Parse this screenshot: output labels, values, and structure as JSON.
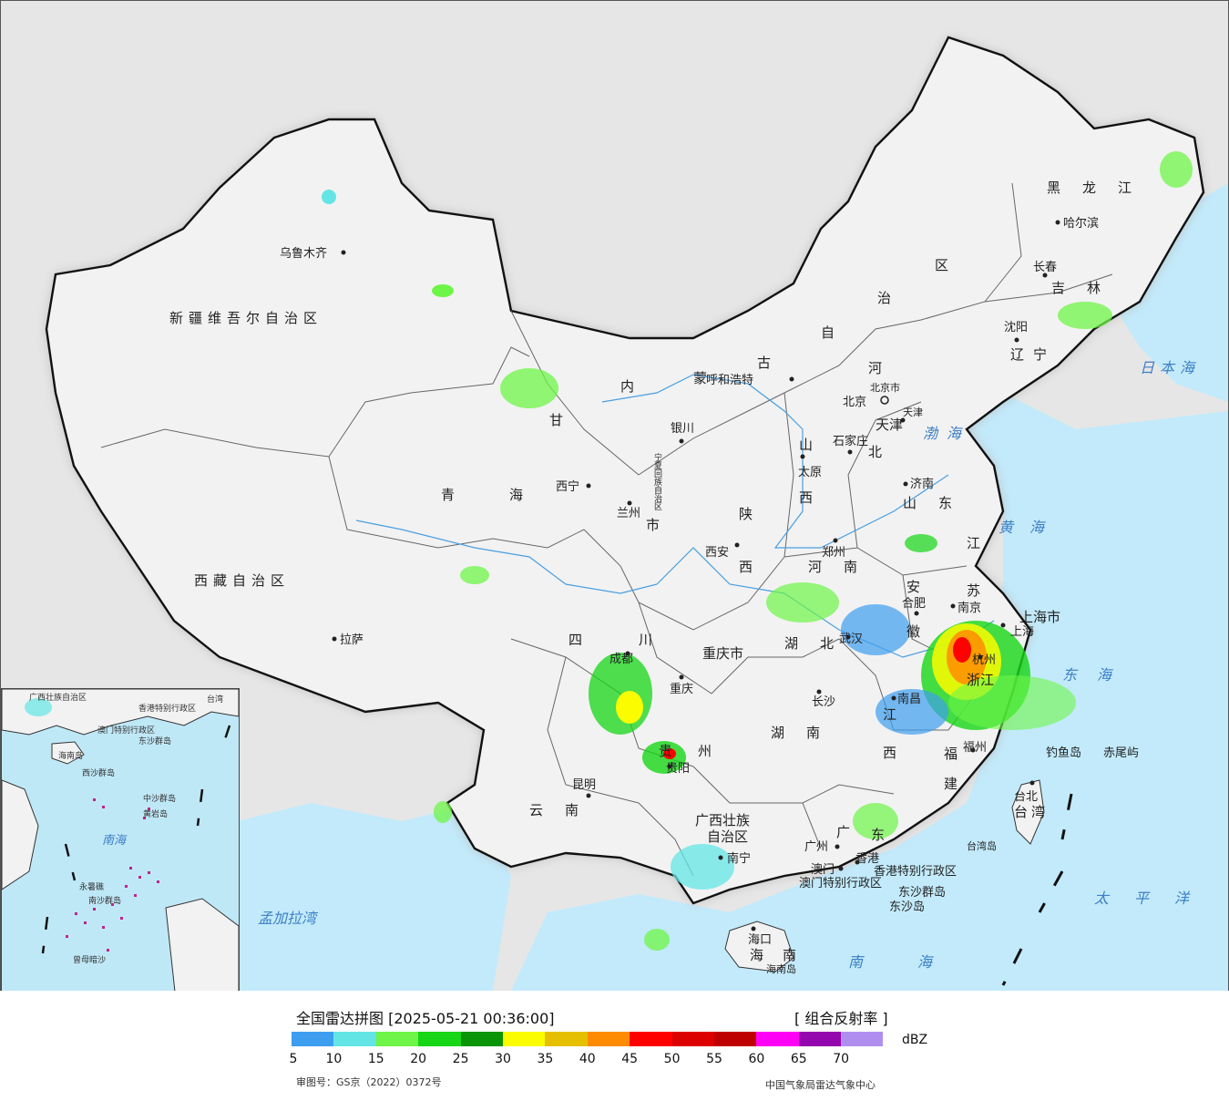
{
  "map": {
    "provinces": [
      {
        "name": "新疆维吾尔自治区"
      },
      {
        "name": "西藏自治区"
      },
      {
        "name": "青海"
      },
      {
        "name": "甘"
      },
      {
        "name": "内"
      },
      {
        "name": "蒙"
      },
      {
        "name": "古"
      },
      {
        "name": "自"
      },
      {
        "name": "治"
      },
      {
        "name": "区"
      },
      {
        "name": "黑龙江"
      },
      {
        "name": "吉林"
      },
      {
        "name": "辽宁"
      },
      {
        "name": "河"
      },
      {
        "name": "北"
      },
      {
        "name": "山"
      },
      {
        "name": "西"
      },
      {
        "name": "山东"
      },
      {
        "name": "陕"
      },
      {
        "name": "西"
      },
      {
        "name": "河南"
      },
      {
        "name": "江"
      },
      {
        "name": "苏"
      },
      {
        "name": "安"
      },
      {
        "name": "徽"
      },
      {
        "name": "四"
      },
      {
        "name": "川"
      },
      {
        "name": "重庆市"
      },
      {
        "name": "湖北"
      },
      {
        "name": "湖南"
      },
      {
        "name": "江"
      },
      {
        "name": "西"
      },
      {
        "name": "浙江"
      },
      {
        "name": "上海市"
      },
      {
        "name": "福"
      },
      {
        "name": "建"
      },
      {
        "name": "贵"
      },
      {
        "name": "州"
      },
      {
        "name": "云南"
      },
      {
        "name": "广西壮族"
      },
      {
        "name": "自治区"
      },
      {
        "name": "广"
      },
      {
        "name": "东"
      },
      {
        "name": "海"
      },
      {
        "name": "南"
      },
      {
        "name": "台湾"
      },
      {
        "name": "宁夏回族自治区"
      },
      {
        "name": "市"
      },
      {
        "name": "天津"
      }
    ],
    "cities": [
      "乌鲁木齐",
      "拉萨",
      "西宁",
      "兰州",
      "银川",
      "呼和浩特",
      "北京",
      "天津",
      "石家庄",
      "太原",
      "济南",
      "郑州",
      "西安",
      "合肥",
      "南京",
      "上海",
      "杭州",
      "武汉",
      "成都",
      "重庆",
      "长沙",
      "南昌",
      "福州",
      "贵阳",
      "昆明",
      "南宁",
      "广州",
      "澳门",
      "香港",
      "海口",
      "台北",
      "长春",
      "哈尔滨",
      "沈阳"
    ],
    "seas": [
      "日本海",
      "渤海",
      "黄海",
      "东海",
      "太平洋",
      "南海",
      "孟加拉湾"
    ],
    "islands": [
      "钓鱼岛",
      "赤尾屿",
      "台湾岛",
      "东沙群岛",
      "海南岛"
    ],
    "special_regions": [
      "香港特别行政区",
      "澳门特别行政区"
    ],
    "extra_labels": [
      "北京市",
      "东沙岛"
    ]
  },
  "inset": {
    "labels": [
      "广西壮族自治区",
      "香港特别行政区",
      "澳门特别行政区",
      "台湾",
      "东沙群岛",
      "海南岛",
      "西沙群岛",
      "中沙群岛",
      "南海",
      "黄岩岛",
      "永暑礁",
      "南沙群岛",
      "曾母暗沙"
    ]
  },
  "legend": {
    "title": "全国雷达拼图 [2025-05-21 00:36:00]",
    "product": "[ 组合反射率 ]",
    "unit": "dBZ",
    "colors": [
      "#3d9ef0",
      "#64e5e5",
      "#6ef547",
      "#16d615",
      "#0a9408",
      "#fbfc00",
      "#e6c000",
      "#ff8c00",
      "#fe0000",
      "#dc0000",
      "#be0000",
      "#ff00f7",
      "#9406ae",
      "#b08ef0"
    ],
    "ticks": [
      "5",
      "10",
      "15",
      "20",
      "25",
      "30",
      "35",
      "40",
      "45",
      "50",
      "55",
      "60",
      "65",
      "70"
    ],
    "approval": "审图号：GS京（2022）0372号",
    "source": "中国气象局雷达气象中心"
  }
}
